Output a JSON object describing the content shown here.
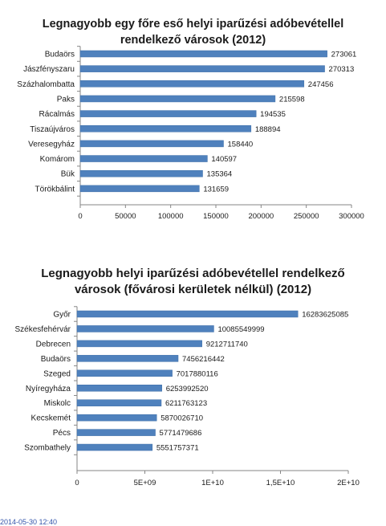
{
  "chart_data": [
    {
      "type": "bar",
      "orientation": "horizontal",
      "title": "Legnagyobb egy főre eső helyi iparűzési adóbevétellel rendelkező városok (2012)",
      "title_lines": [
        "Legnagyobb egy főre eső helyi iparűzési adóbevétellel",
        "rendelkező városok (2012)"
      ],
      "categories": [
        "Budaörs",
        "Jászfényszaru",
        "Százhalombatta",
        "Paks",
        "Rácalmás",
        "Tiszaújváros",
        "Veresegyház",
        "Komárom",
        "Bük",
        "Törökbálint"
      ],
      "values": [
        273061,
        270313,
        247456,
        215598,
        194535,
        188894,
        158440,
        140597,
        135364,
        131659
      ],
      "value_labels": [
        "273061",
        "270313",
        "247456",
        "215598",
        "194535",
        "188894",
        "158440",
        "140597",
        "135364",
        "131659"
      ],
      "xlim": [
        0,
        300000
      ],
      "ticks": [
        0,
        50000,
        100000,
        150000,
        200000,
        250000,
        300000
      ],
      "tick_labels": [
        "0",
        "50000",
        "100000",
        "150000",
        "200000",
        "250000",
        "300000"
      ],
      "bar_color": "#4f81bd",
      "grid": false,
      "legend": "none"
    },
    {
      "type": "bar",
      "orientation": "horizontal",
      "title": "Legnagyobb helyi iparűzési adóbevétellel rendelkező városok (fővárosi kerületek nélkül) (2012)",
      "title_lines": [
        "Legnagyobb helyi iparűzési adóbevétellel rendelkező",
        "városok (fővárosi kerületek nélkül) (2012)"
      ],
      "categories": [
        "Győr",
        "Székesfehérvár",
        "Debrecen",
        "Budaörs",
        "Szeged",
        "Nyíregyháza",
        "Miskolc",
        "Kecskemét",
        "Pécs",
        "Szombathely"
      ],
      "values": [
        16283625085,
        10085549999,
        9212711740,
        7456216442,
        7017880116,
        6253992520,
        6211763123,
        5870026710,
        5771479686,
        5551757371
      ],
      "value_labels": [
        "16283625085",
        "10085549999",
        "9212711740",
        "7456216442",
        "7017880116",
        "6253992520",
        "6211763123",
        "5870026710",
        "5771479686",
        "5551757371"
      ],
      "xlim": [
        0,
        20000000000
      ],
      "ticks": [
        0,
        5000000000,
        10000000000,
        15000000000,
        20000000000
      ],
      "tick_labels": [
        "0",
        "5E+09",
        "1E+10",
        "1,5E+10",
        "2E+10"
      ],
      "bar_color": "#4f81bd",
      "grid": false,
      "legend": "none"
    }
  ],
  "footer": {
    "timestamp": "2014-05-30 12:40"
  }
}
